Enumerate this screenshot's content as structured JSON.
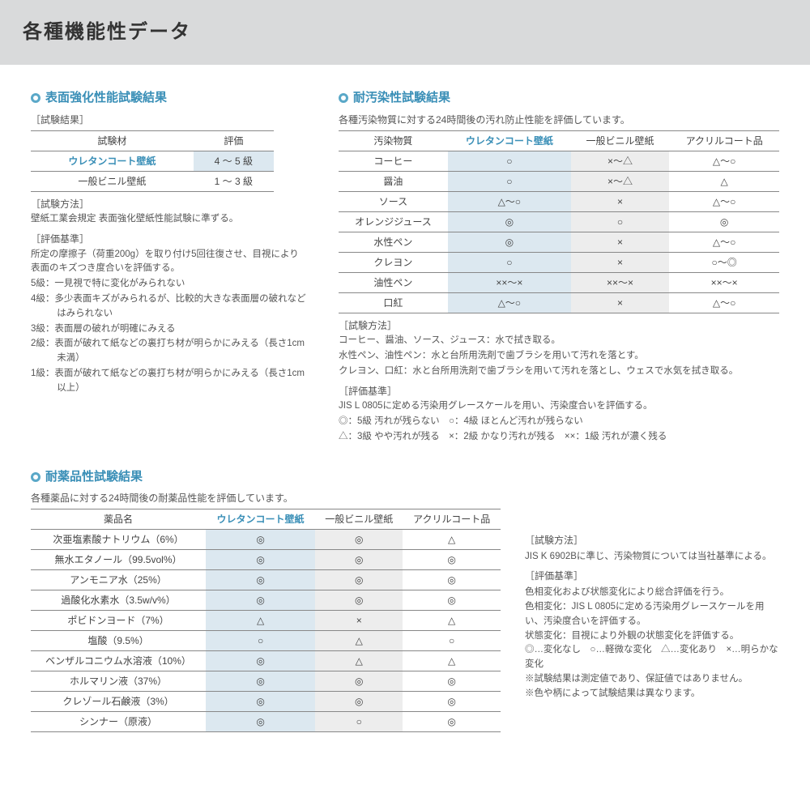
{
  "header": {
    "title": "各種機能性データ"
  },
  "colors": {
    "accent": "#3a8fb7",
    "hl_blue": "#dce8f0",
    "hl_grey": "#ededed",
    "border": "#888"
  },
  "sec1": {
    "title": "表面強化性能試験結果",
    "sub": "［試験結果］",
    "cols": [
      "試験材",
      "評価"
    ],
    "rows": [
      {
        "a": "ウレタンコート壁紙",
        "b": "4 ～ 5 級",
        "hl": true
      },
      {
        "a": "一般ビニル壁紙",
        "b": "1 ～ 3 級",
        "hl": false
      }
    ],
    "method_h": "［試験方法］",
    "method": "壁紙工業会規定 表面強化壁紙性能試験に準ずる。",
    "crit_h": "［評価基準］",
    "crit1": "所定の摩擦子（荷重200g）を取り付け5回往復させ、目視により表面のキズつき度合いを評価する。",
    "g5": "5級：一見視で特に変化がみられない",
    "g4": "4級：多少表面キズがみられるが、比較的大きな表面層の破れなどはみられない",
    "g3": "3級：表面層の破れが明確にみえる",
    "g2": "2級：表面が破れて紙などの裏打ち材が明らかにみえる（長さ1cm未満）",
    "g1": "1級：表面が破れて紙などの裏打ち材が明らかにみえる（長さ1cm以上）"
  },
  "sec2": {
    "title": "耐汚染性試験結果",
    "sub": "各種汚染物質に対する24時間後の汚れ防止性能を評価しています。",
    "cols": [
      "汚染物質",
      "ウレタンコート壁紙",
      "一般ビニル壁紙",
      "アクリルコート品"
    ],
    "rows": [
      {
        "a": "コーヒー",
        "b": "○",
        "c": "×～△",
        "d": "△～○"
      },
      {
        "a": "醤油",
        "b": "○",
        "c": "×～△",
        "d": "△"
      },
      {
        "a": "ソース",
        "b": "△～○",
        "c": "×",
        "d": "△～○"
      },
      {
        "a": "オレンジジュース",
        "b": "◎",
        "c": "○",
        "d": "◎"
      },
      {
        "a": "水性ペン",
        "b": "◎",
        "c": "×",
        "d": "△～○"
      },
      {
        "a": "クレヨン",
        "b": "○",
        "c": "×",
        "d": "○～◎"
      },
      {
        "a": "油性ペン",
        "b": "××～×",
        "c": "××～×",
        "d": "××～×"
      },
      {
        "a": "口紅",
        "b": "△～○",
        "c": "×",
        "d": "△～○"
      }
    ],
    "method_h": "［試験方法］",
    "m1": "コーヒー、醤油、ソース、ジュース：水で拭き取る。",
    "m2": "水性ペン、油性ペン：水と台所用洗剤で歯ブラシを用いて汚れを落とす。",
    "m3": "クレヨン、口紅：水と台所用洗剤で歯ブラシを用いて汚れを落とし、ウェスで水気を拭き取る。",
    "crit_h": "［評価基準］",
    "c1": "JIS L 0805に定める汚染用グレースケールを用い、汚染度合いを評価する。",
    "c2": "◎：5級 汚れが残らない　○：4級 ほとんど汚れが残らない",
    "c3": "△：3級 やや汚れが残る　×：2級 かなり汚れが残る　××：1級 汚れが濃く残る"
  },
  "sec3": {
    "title": "耐薬品性試験結果",
    "sub": "各種薬品に対する24時間後の耐薬品性能を評価しています。",
    "cols": [
      "薬品名",
      "ウレタンコート壁紙",
      "一般ビニル壁紙",
      "アクリルコート品"
    ],
    "rows": [
      {
        "a": "次亜塩素酸ナトリウム（6%）",
        "b": "◎",
        "c": "◎",
        "d": "△"
      },
      {
        "a": "無水エタノール（99.5vol%）",
        "b": "◎",
        "c": "◎",
        "d": "◎"
      },
      {
        "a": "アンモニア水（25%）",
        "b": "◎",
        "c": "◎",
        "d": "◎"
      },
      {
        "a": "過酸化水素水（3.5w/v%）",
        "b": "◎",
        "c": "◎",
        "d": "◎"
      },
      {
        "a": "ポビドンヨード（7%）",
        "b": "△",
        "c": "×",
        "d": "△"
      },
      {
        "a": "塩酸（9.5%）",
        "b": "○",
        "c": "△",
        "d": "○"
      },
      {
        "a": "ベンザルコニウム水溶液（10%）",
        "b": "◎",
        "c": "△",
        "d": "△"
      },
      {
        "a": "ホルマリン液（37%）",
        "b": "◎",
        "c": "◎",
        "d": "◎"
      },
      {
        "a": "クレゾール石鹸液（3%）",
        "b": "◎",
        "c": "◎",
        "d": "◎"
      },
      {
        "a": "シンナー（原液）",
        "b": "◎",
        "c": "○",
        "d": "◎"
      }
    ],
    "method_h": "［試験方法］",
    "m1": "JIS K 6902Bに準じ、汚染物質については当社基準による。",
    "crit_h": "［評価基準］",
    "c1": "色相変化および状態変化により総合評価を行う。",
    "c2": "色相変化：JIS L 0805に定める汚染用グレースケールを用い、汚染度合いを評価する。",
    "c3": "状態変化：目視により外観の状態変化を評価する。",
    "c4": "◎…変化なし　○…軽微な変化　△…変化あり　×…明らかな変化",
    "n1": "※試験結果は測定値であり、保証値ではありません。",
    "n2": "※色や柄によって試験結果は異なります。"
  }
}
